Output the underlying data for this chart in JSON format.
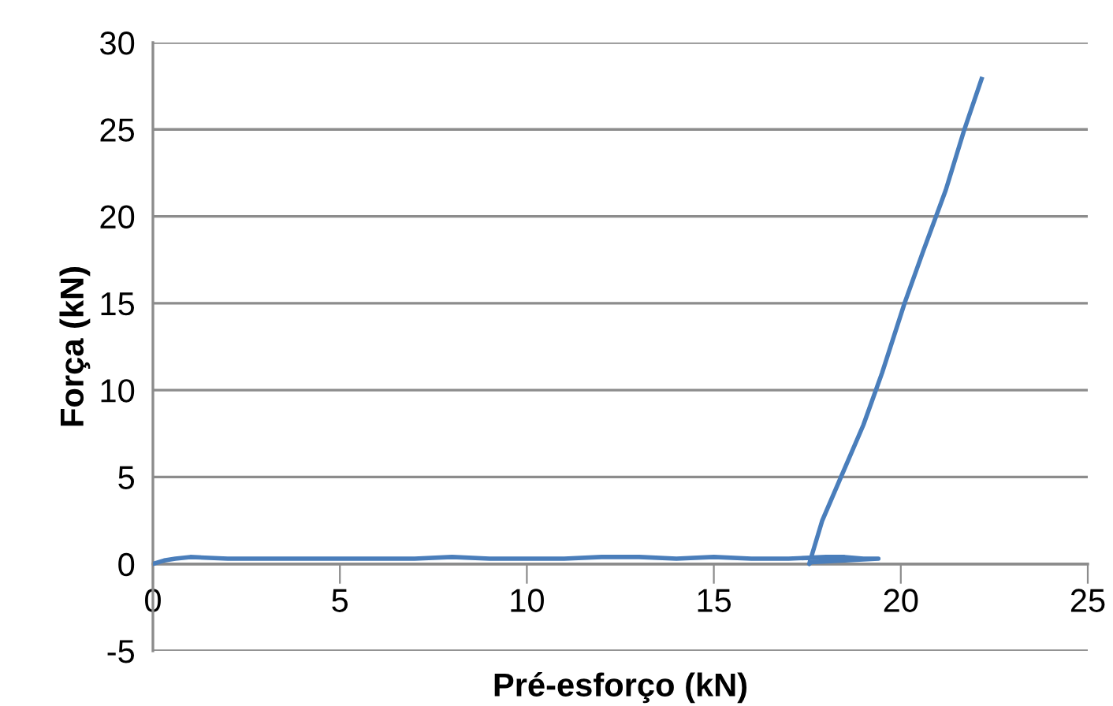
{
  "chart_data": {
    "type": "line",
    "xlabel": "Pré-esforço (kN)",
    "ylabel": "Força (kN)",
    "xlim": [
      0,
      25
    ],
    "xticks": [
      0,
      5,
      10,
      15,
      20,
      25
    ],
    "ylim": [
      -5,
      30
    ],
    "yticks": [
      -5,
      0,
      5,
      10,
      15,
      20,
      25,
      30
    ],
    "grid": "y",
    "marker": "none",
    "line_style": "solid",
    "series": [
      {
        "color": "#4a7ebb",
        "x": [
          0,
          0.3,
          0.6,
          1,
          2,
          3,
          4,
          5,
          6,
          7,
          8,
          9,
          10,
          11,
          12,
          13,
          14,
          15,
          16,
          17,
          18,
          18.5,
          19,
          19.4,
          18.5,
          17.6,
          17.55,
          17.9,
          18.4,
          19,
          19.5,
          20.1,
          20.6,
          21.2,
          21.7,
          22.16
        ],
        "values": [
          0,
          0.2,
          0.3,
          0.4,
          0.3,
          0.3,
          0.3,
          0.3,
          0.3,
          0.3,
          0.4,
          0.3,
          0.3,
          0.3,
          0.4,
          0.4,
          0.3,
          0.4,
          0.3,
          0.3,
          0.4,
          0.4,
          0.3,
          0.3,
          0.2,
          0.1,
          0,
          2.5,
          5,
          8,
          11,
          15,
          18,
          21.5,
          25,
          27.9
        ]
      }
    ]
  }
}
